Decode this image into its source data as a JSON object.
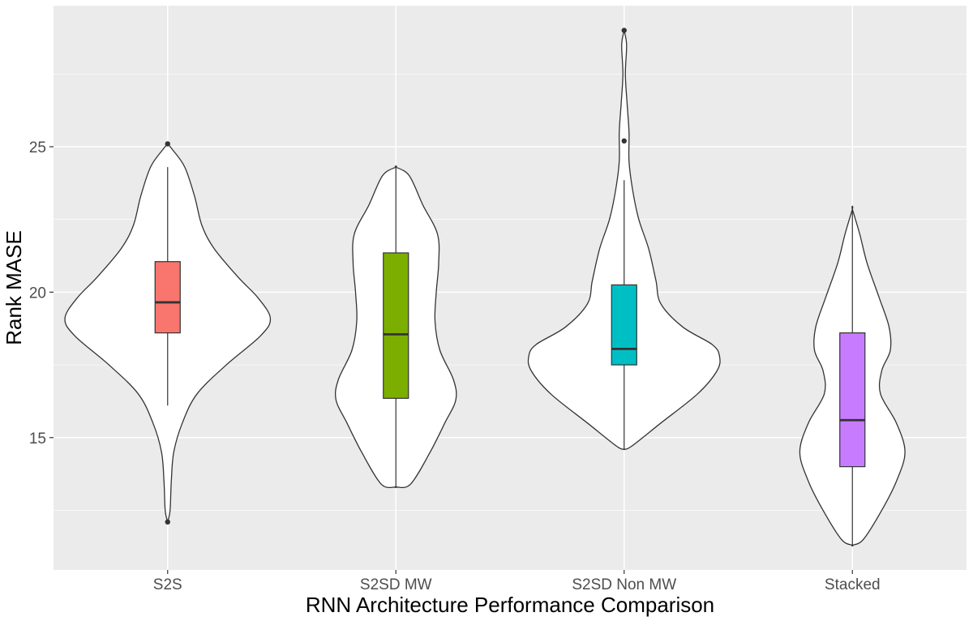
{
  "chart_data": {
    "type": "violin",
    "title": "",
    "xlabel": "RNN Architecture Performance Comparison",
    "ylabel": "Rank MASE",
    "ylim": [
      10.45,
      29.85
    ],
    "yticks": [
      15,
      20,
      25
    ],
    "ytick_labels": [
      "15",
      "20",
      "25"
    ],
    "grid": true,
    "legend": "none",
    "categories": [
      "S2S",
      "S2SD MW",
      "S2SD Non MW",
      "Stacked"
    ],
    "colors": [
      "#F8766D",
      "#7CAE00",
      "#00BFC4",
      "#C77CFF"
    ],
    "box": [
      {
        "q1": 18.6,
        "median": 19.65,
        "q3": 21.05,
        "whisker_low": 16.1,
        "whisker_high": 24.3,
        "outliers": [
          25.1,
          12.1
        ]
      },
      {
        "q1": 16.35,
        "median": 18.55,
        "q3": 21.35,
        "whisker_low": 13.3,
        "whisker_high": 24.3,
        "outliers": []
      },
      {
        "q1": 17.5,
        "median": 18.05,
        "q3": 20.25,
        "whisker_low": 14.6,
        "whisker_high": 23.85,
        "outliers": [
          25.2,
          29.0
        ]
      },
      {
        "q1": 14.0,
        "median": 15.6,
        "q3": 18.6,
        "whisker_low": 11.3,
        "whisker_high": 22.85,
        "outliers": []
      }
    ],
    "violin_profiles": [
      [
        [
          12.1,
          0
        ],
        [
          12.5,
          0.1
        ],
        [
          13.5,
          0.15
        ],
        [
          14.5,
          0.25
        ],
        [
          15.5,
          0.6
        ],
        [
          16.5,
          1.2
        ],
        [
          17.5,
          2.4
        ],
        [
          18.5,
          3.8
        ],
        [
          19.1,
          4.2
        ],
        [
          19.8,
          3.7
        ],
        [
          20.5,
          2.9
        ],
        [
          21.5,
          1.9
        ],
        [
          22.3,
          1.4
        ],
        [
          23.3,
          1.1
        ],
        [
          24.3,
          0.7
        ],
        [
          24.9,
          0.2
        ],
        [
          25.1,
          0
        ]
      ],
      [
        [
          13.3,
          0
        ],
        [
          13.4,
          0.6
        ],
        [
          14.5,
          1.4
        ],
        [
          15.5,
          2.0
        ],
        [
          16.3,
          2.45
        ],
        [
          17.0,
          2.35
        ],
        [
          18.0,
          1.8
        ],
        [
          19.0,
          1.6
        ],
        [
          20.0,
          1.65
        ],
        [
          21.0,
          1.75
        ],
        [
          22.0,
          1.7
        ],
        [
          23.0,
          1.1
        ],
        [
          24.0,
          0.55
        ],
        [
          24.3,
          0
        ]
      ],
      [
        [
          14.6,
          0
        ],
        [
          14.7,
          0.3
        ],
        [
          15.5,
          1.5
        ],
        [
          16.5,
          3.0
        ],
        [
          17.3,
          3.8
        ],
        [
          17.8,
          3.9
        ],
        [
          18.2,
          3.6
        ],
        [
          18.8,
          2.4
        ],
        [
          19.6,
          1.5
        ],
        [
          20.4,
          1.3
        ],
        [
          21.5,
          1.0
        ],
        [
          22.5,
          0.6
        ],
        [
          23.5,
          0.35
        ],
        [
          24.5,
          0.2
        ],
        [
          25.5,
          0.2
        ],
        [
          26.5,
          0.12
        ],
        [
          27.5,
          0.05
        ],
        [
          28.5,
          0.1
        ],
        [
          29.0,
          0
        ]
      ],
      [
        [
          11.3,
          0
        ],
        [
          11.5,
          0.45
        ],
        [
          12.5,
          1.2
        ],
        [
          13.5,
          1.8
        ],
        [
          14.5,
          2.15
        ],
        [
          15.5,
          1.8
        ],
        [
          16.5,
          1.15
        ],
        [
          17.3,
          1.2
        ],
        [
          18.0,
          1.55
        ],
        [
          18.8,
          1.5
        ],
        [
          19.8,
          1.1
        ],
        [
          21.0,
          0.6
        ],
        [
          22.0,
          0.3
        ],
        [
          22.85,
          0
        ]
      ]
    ]
  }
}
